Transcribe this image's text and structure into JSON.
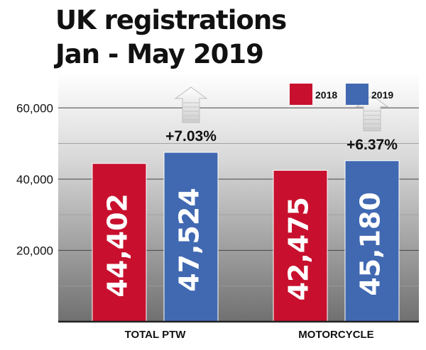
{
  "title_lines": [
    "UK registrations",
    "Jan - May 2019"
  ],
  "chart_data": {
    "type": "bar",
    "title": "UK registrations Jan - May 2019",
    "categories": [
      "TOTAL PTW",
      "MOTORCYCLE"
    ],
    "series": [
      {
        "name": "2018",
        "values": [
          44402,
          42475
        ],
        "labels": [
          "44,402",
          "42,475"
        ],
        "color": "#c8102e"
      },
      {
        "name": "2019",
        "values": [
          47524,
          45180
        ],
        "labels": [
          "47,524",
          "45,180"
        ],
        "color": "#4169b2"
      }
    ],
    "changes": [
      "+7.03%",
      "+6.37%"
    ],
    "yticks": [
      20000,
      40000,
      60000
    ],
    "ytick_labels": [
      "20,000",
      "40,000",
      "60,000"
    ],
    "ylim": [
      0,
      70000
    ],
    "legend_position": "top-right",
    "grid": true
  }
}
